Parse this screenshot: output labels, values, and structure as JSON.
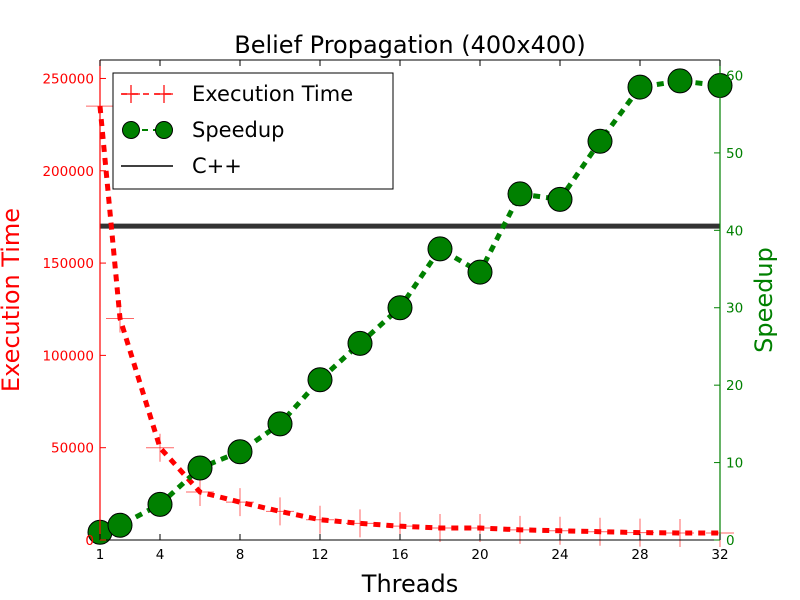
{
  "chart_data": {
    "type": "line",
    "title": "Belief Propagation (400x400)",
    "xlabel": "Threads",
    "ylabel_left": "Execution Time",
    "ylabel_right": "Speedup",
    "xlim": [
      1,
      32
    ],
    "ylim_left": [
      0,
      260000
    ],
    "ylim_right": [
      0,
      62
    ],
    "x_ticks": [
      1,
      4,
      8,
      12,
      16,
      20,
      24,
      28,
      32
    ],
    "y_left_ticks": [
      0,
      50000,
      100000,
      150000,
      200000,
      250000
    ],
    "y_right_ticks": [
      0,
      10,
      20,
      30,
      40,
      50,
      60
    ],
    "legend_position": "top-left",
    "colors": {
      "execution_time": "#ff0000",
      "speedup": "#008000",
      "cpp": "#000000",
      "left_axis": "#ff0000",
      "right_axis": "#008000"
    },
    "series": [
      {
        "name": "Execution Time",
        "axis": "left",
        "style": "dashed",
        "marker": "plus",
        "x": [
          1,
          2,
          4,
          6,
          8,
          10,
          12,
          14,
          16,
          18,
          20,
          22,
          24,
          26,
          28,
          30,
          32
        ],
        "values": [
          235000,
          120000,
          50000,
          26000,
          20500,
          15500,
          11000,
          9000,
          7500,
          6500,
          6500,
          5500,
          5000,
          4500,
          4000,
          3800,
          3800
        ]
      },
      {
        "name": "Speedup",
        "axis": "right",
        "style": "dashed",
        "marker": "circle",
        "x": [
          1,
          2,
          4,
          6,
          8,
          10,
          12,
          14,
          16,
          18,
          20,
          22,
          24,
          26,
          28,
          30,
          32
        ],
        "values": [
          1.0,
          1.9,
          4.6,
          9.3,
          11.4,
          15.0,
          20.7,
          25.4,
          30.0,
          37.6,
          34.6,
          44.7,
          44.0,
          51.5,
          58.5,
          59.3,
          58.7
        ]
      },
      {
        "name": "C++",
        "axis": "left",
        "style": "solid",
        "marker": "none",
        "x": [
          1,
          32
        ],
        "values": [
          170000,
          170000
        ]
      }
    ]
  }
}
